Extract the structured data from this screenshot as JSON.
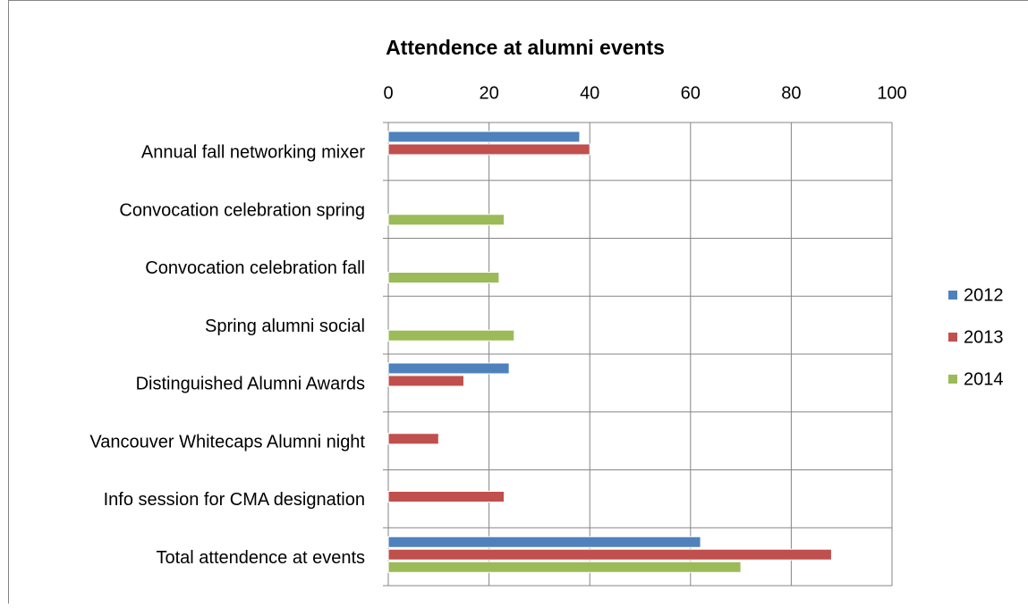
{
  "chart_data": {
    "type": "bar",
    "orientation": "horizontal",
    "title": "Attendence at alumni events",
    "categories": [
      "Annual fall networking mixer",
      "Convocation celebration spring",
      "Convocation celebration fall",
      "Spring alumni social",
      "Distinguished Alumni Awards",
      "Vancouver Whitecaps Alumni night",
      "Info session for CMA designation",
      "Total attendence at events"
    ],
    "series": [
      {
        "name": "2012",
        "color": "#4f81bd",
        "values": [
          38,
          null,
          null,
          null,
          24,
          null,
          null,
          62
        ]
      },
      {
        "name": "2013",
        "color": "#c0504d",
        "values": [
          40,
          null,
          null,
          null,
          15,
          10,
          23,
          88
        ]
      },
      {
        "name": "2014",
        "color": "#9bbb59",
        "values": [
          null,
          23,
          22,
          25,
          null,
          null,
          null,
          70
        ]
      }
    ],
    "xlim": [
      0,
      100
    ],
    "xticks": [
      0,
      20,
      40,
      60,
      80,
      100
    ],
    "grid": true,
    "legend": "right"
  }
}
